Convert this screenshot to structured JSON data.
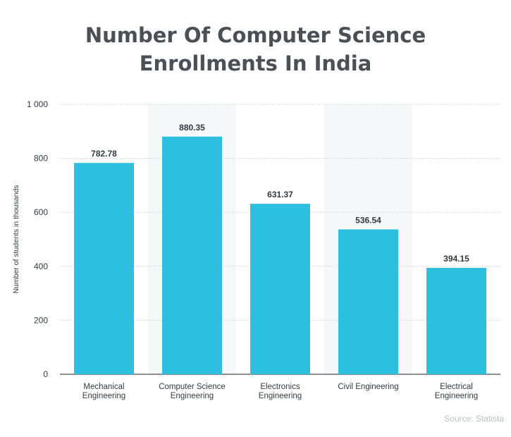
{
  "title_lines": [
    "Number Of Computer Science",
    "Enrollments In India"
  ],
  "source": "Source: Statista",
  "chart_data": {
    "type": "bar",
    "title": "Number Of Computer Science Enrollments In India",
    "ylabel": "Number of students in thousands",
    "xlabel": "",
    "ylim": [
      0,
      1000
    ],
    "yticks": [
      0,
      200,
      400,
      600,
      800,
      1000
    ],
    "ytick_labels": [
      "0",
      "200",
      "400",
      "600",
      "800",
      "1 000"
    ],
    "categories": [
      [
        "Mechanical",
        "Engineering"
      ],
      [
        "Computer Science",
        "Engineering"
      ],
      [
        "Electronics",
        "Engineering"
      ],
      [
        "Civil Engineering"
      ],
      [
        "Electrical",
        "Engineering"
      ]
    ],
    "values": [
      782.78,
      880.35,
      631.37,
      536.54,
      394.15
    ],
    "value_labels": [
      "782.78",
      "880.35",
      "631.37",
      "536.54",
      "394.15"
    ],
    "bar_color": "#2cbfe0",
    "grid": true
  }
}
